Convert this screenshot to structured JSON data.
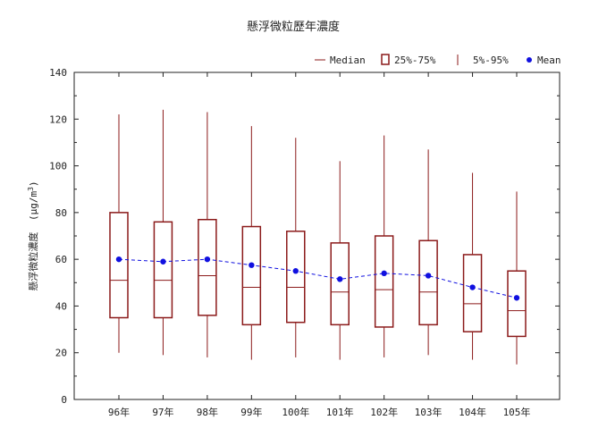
{
  "chart_data": {
    "type": "box",
    "title": "懸浮微粒歷年濃度",
    "ylabel_main": "懸浮微粒濃度",
    "ylabel_unit_prefix": "(μg/m",
    "ylabel_unit_sup": "3",
    "ylabel_unit_suffix": ")",
    "xlabel": "",
    "ylim": [
      0,
      140
    ],
    "yticks": [
      0,
      20,
      40,
      60,
      80,
      100,
      120,
      140
    ],
    "grid": false,
    "legend_position": "top-right",
    "categories": [
      "96年",
      "97年",
      "98年",
      "99年",
      "100年",
      "101年",
      "102年",
      "103年",
      "104年",
      "105年"
    ],
    "series": [
      {
        "name": "5%-95%",
        "low": [
          20,
          19,
          18,
          17,
          18,
          17,
          18,
          19,
          17,
          15
        ],
        "high": [
          122,
          124,
          123,
          117,
          112,
          102,
          113,
          107,
          97,
          89
        ]
      },
      {
        "name": "25%-75%",
        "q1": [
          35,
          35,
          36,
          32,
          33,
          32,
          31,
          32,
          29,
          27
        ],
        "q3": [
          80,
          76,
          77,
          74,
          72,
          67,
          70,
          68,
          62,
          55
        ]
      },
      {
        "name": "Median",
        "values": [
          51,
          51,
          53,
          48,
          48,
          46,
          47,
          46,
          41,
          38
        ]
      },
      {
        "name": "Mean",
        "values": [
          60,
          59,
          60,
          57.5,
          55,
          51.5,
          54,
          53,
          48,
          43.5
        ]
      }
    ],
    "colors": {
      "box": "#8b1a1a",
      "mean": "#1010e0",
      "axis": "#222222"
    }
  }
}
